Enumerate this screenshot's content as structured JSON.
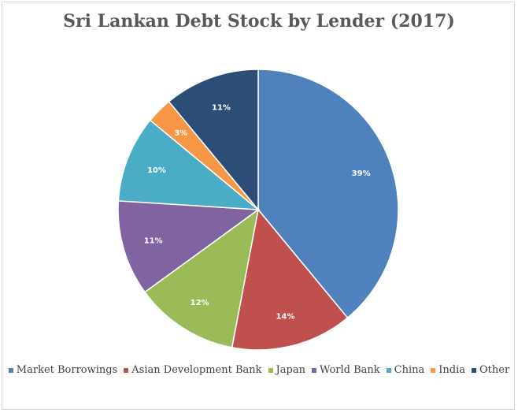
{
  "chart_data": {
    "type": "pie",
    "title": "Sri Lankan Debt Stock by Lender (2017)",
    "categories": [
      "Market Borrowings",
      "Asian Development Bank",
      "Japan",
      "World Bank",
      "China",
      "India",
      "Other"
    ],
    "values": [
      39,
      14,
      12,
      11,
      10,
      3,
      11
    ],
    "labels": [
      "39%",
      "14%",
      "12%",
      "11%",
      "10%",
      "3%",
      "11%"
    ],
    "colors": [
      "#4F81BD",
      "#C0504D",
      "#9BBB59",
      "#8064A2",
      "#4BACC6",
      "#F79646",
      "#2C4D75"
    ],
    "legend_position": "bottom"
  }
}
